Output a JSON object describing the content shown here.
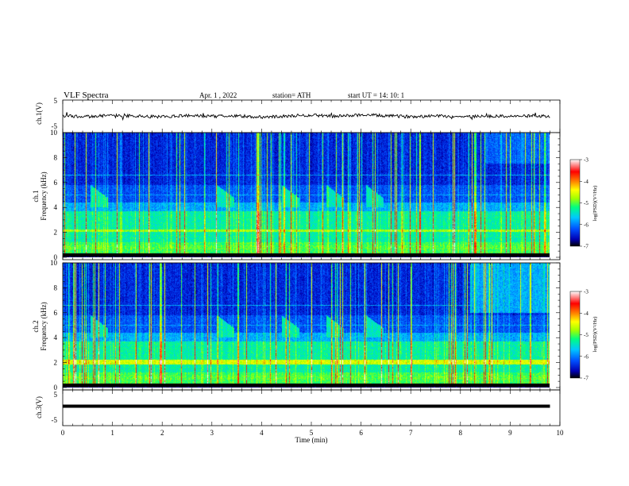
{
  "header": {
    "title": "VLF  Spectra",
    "date": "Apr. 1  , 2022",
    "station": "station= ATH",
    "start_ut": "start  UT  =    14: 10: 1"
  },
  "chart_data": [
    {
      "type": "line",
      "panel": "ch1-waveform",
      "ylabel": "ch.1(V)",
      "ylim": [
        -5,
        5
      ],
      "yticks": [
        "5",
        "-5"
      ],
      "x": [
        0,
        0.5,
        1,
        1.5,
        2,
        2.5,
        3,
        3.5,
        4,
        4.5,
        5,
        5.5,
        6,
        6.5,
        7,
        7.5,
        8,
        8.5,
        9,
        9.5,
        9.8
      ],
      "values": [
        0.2,
        -0.1,
        0.4,
        0.1,
        -0.2,
        0.3,
        0.0,
        0.2,
        -0.3,
        0.1,
        0.5,
        0.0,
        0.6,
        0.2,
        -0.1,
        0.3,
        -0.2,
        0.1,
        0.0,
        0.2,
        0.1
      ],
      "color": "#000000"
    },
    {
      "type": "heatmap",
      "panel": "ch1-spectrogram",
      "ylabel": "ch.1\nFrequency  (kHz)",
      "ylim": [
        0,
        10
      ],
      "yticks": [
        "0",
        "2",
        "4",
        "6",
        "8",
        "10"
      ],
      "colorbar": {
        "label": "log(PSD)(V²/Hz)",
        "range": [
          -7,
          -3
        ],
        "ticks": [
          "-3",
          "-4",
          "-5",
          "-6",
          "-7"
        ],
        "colors": [
          "#000000",
          "#0000b4",
          "#0050ff",
          "#00c8ff",
          "#00ff80",
          "#a0ff00",
          "#ffff00",
          "#ff8000",
          "#ff0000",
          "#ffffff"
        ]
      }
    },
    {
      "type": "heatmap",
      "panel": "ch2-spectrogram",
      "ylabel": "ch.2\nFrequency  (kHz)",
      "ylim": [
        0,
        10
      ],
      "yticks": [
        "0",
        "2",
        "4",
        "6",
        "8",
        "10"
      ],
      "colorbar": {
        "label": "log(PSD)(V²/Hz)",
        "range": [
          -7,
          -3
        ],
        "ticks": [
          "-3",
          "-4",
          "-5",
          "-6",
          "-7"
        ],
        "colors": [
          "#000000",
          "#0000b4",
          "#0050ff",
          "#00c8ff",
          "#00ff80",
          "#a0ff00",
          "#ffff00",
          "#ff8000",
          "#ff0000",
          "#ffffff"
        ]
      }
    },
    {
      "type": "line",
      "panel": "ch3-waveform",
      "ylabel": "ch.3(V)",
      "ylim": [
        -5,
        5
      ],
      "yticks": [
        "5",
        "-5"
      ],
      "x": [
        0,
        9.8
      ],
      "values": [
        0,
        0
      ],
      "color": "#000000"
    }
  ],
  "xaxis": {
    "label": "Time  (min)",
    "xlim": [
      0,
      10
    ],
    "ticks": [
      "0",
      "1",
      "2",
      "3",
      "4",
      "5",
      "6",
      "7",
      "8",
      "9",
      "10"
    ]
  }
}
